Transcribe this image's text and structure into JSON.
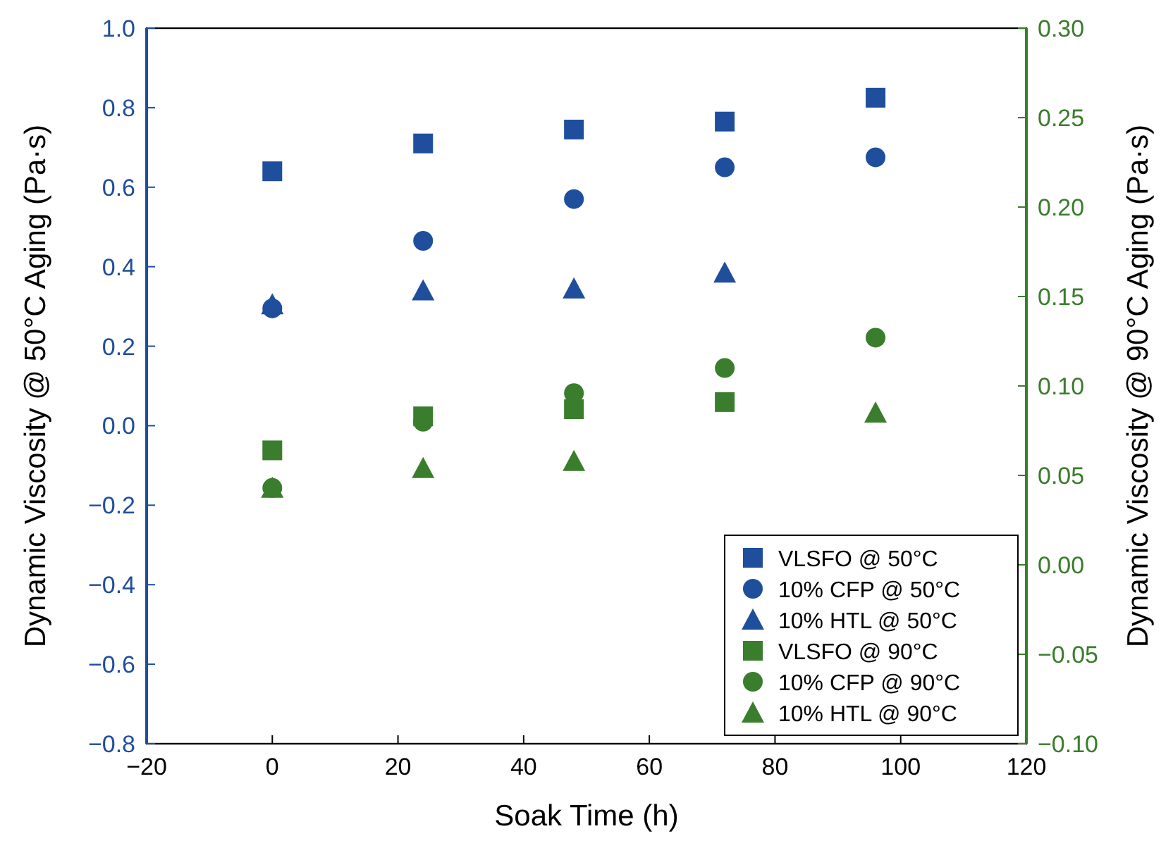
{
  "chart_data": {
    "type": "scatter",
    "xlabel": "Soak Time (h)",
    "ylabel": "Dynamic Viscosity @ 50°C Aging (Pa·s)",
    "y2label": "Dynamic Viscosity @ 90°C Aging (Pa·s)",
    "x": [
      0,
      24,
      48,
      72,
      96
    ],
    "xlim": [
      -20,
      120
    ],
    "xticks": [
      {
        "value": -20,
        "label": "−20"
      },
      0,
      20,
      40,
      60,
      80,
      100,
      120
    ],
    "ylim": [
      -0.8,
      1.0
    ],
    "yticks": [
      {
        "value": -0.8,
        "label": "−0.8"
      },
      {
        "value": -0.6,
        "label": "−0.6"
      },
      {
        "value": -0.4,
        "label": "−0.4"
      },
      {
        "value": -0.2,
        "label": "−0.2"
      },
      {
        "value": 0,
        "label": "0.0"
      },
      {
        "value": 0.2,
        "label": "0.2"
      },
      {
        "value": 0.4,
        "label": "0.4"
      },
      {
        "value": 0.6,
        "label": "0.6"
      },
      {
        "value": 0.8,
        "label": "0.8"
      },
      {
        "value": 1.0,
        "label": "1.0"
      }
    ],
    "y2lim": [
      -0.1,
      0.3
    ],
    "y2ticks": [
      {
        "value": -0.1,
        "label": "−0.10"
      },
      {
        "value": -0.05,
        "label": "−0.05"
      },
      {
        "value": 0,
        "label": "0.00"
      },
      {
        "value": 0.05,
        "label": "0.05"
      },
      {
        "value": 0.1,
        "label": "0.10"
      },
      {
        "value": 0.15,
        "label": "0.15"
      },
      {
        "value": 0.2,
        "label": "0.20"
      },
      {
        "value": 0.25,
        "label": "0.25"
      },
      {
        "value": 0.3,
        "label": "0.30"
      }
    ],
    "legend": "bottom right",
    "grid": false,
    "series": [
      {
        "name": "VLSFO @ 50°C",
        "color": "#1f4e9c",
        "marker": "square",
        "values": [
          0.64,
          0.71,
          0.745,
          0.765,
          0.825
        ]
      },
      {
        "name": "10% CFP @ 50°C",
        "color": "#1f4e9c",
        "marker": "circle",
        "values": [
          0.295,
          0.465,
          0.57,
          0.65,
          0.675
        ]
      },
      {
        "name": "10% HTL @ 50°C",
        "color": "#1f4e9c",
        "marker": "triangle",
        "values": [
          0.305,
          0.34,
          0.345,
          0.385,
          null
        ]
      },
      {
        "name": "VLSFO @ 90°C",
        "color": "#3a7d2c",
        "marker": "square",
        "axis": "y2",
        "values": [
          0.064,
          0.083,
          0.087,
          0.091,
          null
        ]
      },
      {
        "name": "10% CFP @ 90°C",
        "color": "#3a7d2c",
        "marker": "circle",
        "axis": "y2",
        "values": [
          0.043,
          0.08,
          0.096,
          0.11,
          0.127
        ]
      },
      {
        "name": "10% HTL @ 90°C",
        "color": "#3a7d2c",
        "marker": "triangle",
        "axis": "y2",
        "values": [
          0.043,
          0.054,
          0.058,
          null,
          0.085
        ]
      }
    ]
  }
}
